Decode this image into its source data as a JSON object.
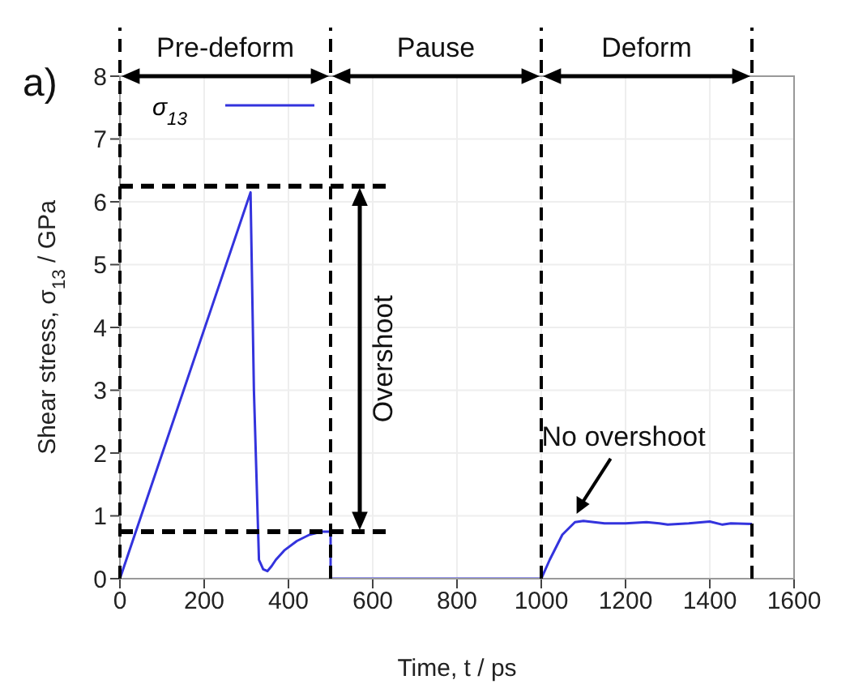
{
  "chart_data": {
    "type": "line",
    "xlabel": "Time, t / ps",
    "ylabel": "Shear stress, σ$_{13}$ / GPa",
    "annotations": [
      "a)",
      "Pre-deform",
      "Pause",
      "Deform",
      "Overshoot",
      {
        "text": "No overshoot",
        "x": 1080,
        "y": 0.93
      }
    ],
    "series": [
      {
        "name": "σ$_{13}$",
        "color": "#3333dd",
        "x": [
          0,
          310,
          318,
          330,
          340,
          350,
          360,
          370,
          390,
          420,
          450,
          480,
          500,
          500,
          600,
          700,
          800,
          900,
          1000,
          1020,
          1050,
          1080,
          1100,
          1150,
          1200,
          1250,
          1280,
          1300,
          1350,
          1400,
          1430,
          1450,
          1500
        ],
        "values": [
          0,
          6.15,
          3.0,
          0.3,
          0.15,
          0.12,
          0.2,
          0.3,
          0.45,
          0.6,
          0.7,
          0.75,
          0.75,
          0,
          0,
          0,
          0,
          0,
          0,
          0.3,
          0.7,
          0.9,
          0.92,
          0.88,
          0.88,
          0.9,
          0.88,
          0.86,
          0.88,
          0.91,
          0.86,
          0.88,
          0.87
        ]
      }
    ],
    "xlim": [
      0,
      1600
    ],
    "xticks": [
      0,
      200,
      400,
      600,
      800,
      1000,
      1200,
      1400,
      1600
    ],
    "ylim": [
      0,
      8
    ],
    "yticks": [
      0,
      1,
      2,
      3,
      4,
      5,
      6,
      7,
      8
    ],
    "ref_lines": [
      {
        "axis": "x",
        "value": 0,
        "line_style": "dashed",
        "color": "#000000"
      },
      {
        "axis": "x",
        "value": 500,
        "line_style": "dashed",
        "color": "#000000"
      },
      {
        "axis": "x",
        "value": 1000,
        "line_style": "dashed",
        "color": "#000000"
      },
      {
        "axis": "x",
        "value": 1500,
        "line_style": "dashed",
        "color": "#000000"
      },
      {
        "axis": "y",
        "value": 6.25,
        "line_style": "dashed",
        "color": "#000000"
      },
      {
        "axis": "y",
        "value": 0.75,
        "line_style": "dashed",
        "color": "#000000"
      }
    ],
    "grid": true,
    "legend": "top left",
    "marker": "none",
    "line_style": "solid"
  }
}
